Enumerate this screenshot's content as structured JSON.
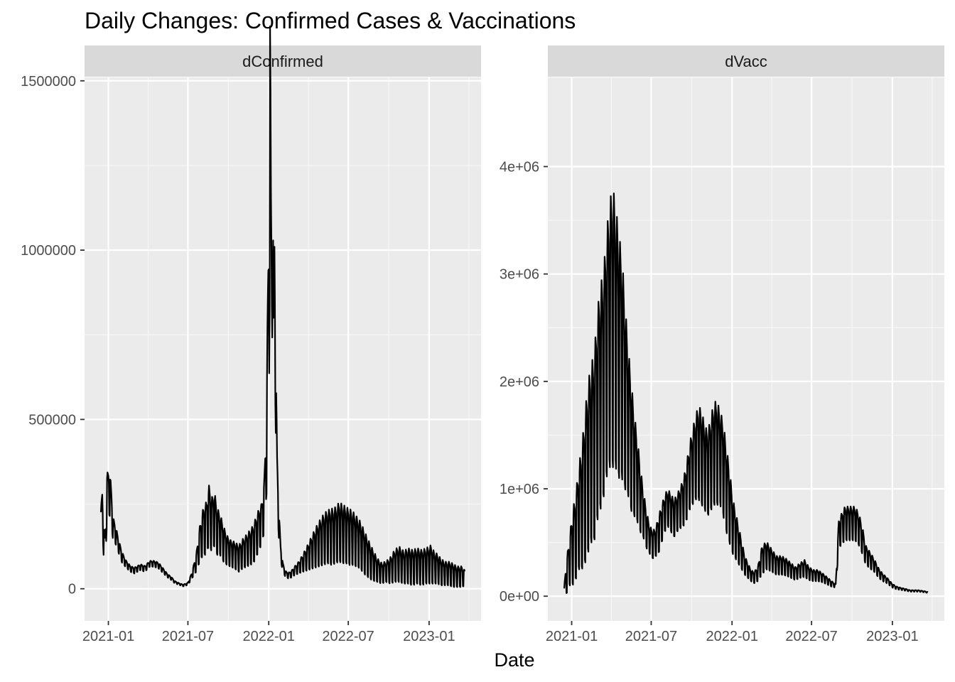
{
  "chart_data": {
    "type": "line",
    "title": "Daily Changes: Confirmed Cases & Vaccinations",
    "xlabel": "Date",
    "ylabel": "",
    "legend": "none",
    "grid": true,
    "panels": [
      {
        "strip": "dConfirmed",
        "x_ticks": [
          "2021-01",
          "2021-07",
          "2022-01",
          "2022-07",
          "2023-01"
        ],
        "y_ticks": [
          0,
          500000,
          1000000,
          1500000
        ],
        "y_tick_labels": [
          "0",
          "500000",
          "1000000",
          "1500000"
        ],
        "ylim": [
          -95000,
          1510000
        ],
        "series": [
          {
            "x": [
              "2020-12-15",
              "2020-12-18",
              "2020-12-21",
              "2020-12-25",
              "2020-12-29",
              "2021-01-04",
              "2021-01-08",
              "2021-01-12",
              "2021-01-18",
              "2021-01-25",
              "2021-02-01",
              "2021-02-10",
              "2021-02-20",
              "2021-03-01",
              "2021-03-15",
              "2021-03-25",
              "2021-04-05",
              "2021-04-15",
              "2021-04-25",
              "2021-05-05",
              "2021-05-15",
              "2021-05-25",
              "2021-06-01",
              "2021-06-10",
              "2021-06-20",
              "2021-07-01",
              "2021-07-10",
              "2021-07-20",
              "2021-07-28",
              "2021-08-05",
              "2021-08-12",
              "2021-08-18",
              "2021-08-24",
              "2021-08-30",
              "2021-09-05",
              "2021-09-12",
              "2021-09-20",
              "2021-09-28",
              "2021-10-06",
              "2021-10-15",
              "2021-10-25",
              "2021-11-03",
              "2021-11-12",
              "2021-11-20",
              "2021-11-27",
              "2021-12-03",
              "2021-12-10",
              "2021-12-16",
              "2021-12-22",
              "2021-12-27",
              "2021-12-30",
              "2022-01-02",
              "2022-01-04",
              "2022-01-06",
              "2022-01-08",
              "2022-01-10",
              "2022-01-12",
              "2022-01-14",
              "2022-01-17",
              "2022-01-20",
              "2022-01-24",
              "2022-01-28",
              "2022-02-02",
              "2022-02-08",
              "2022-02-15",
              "2022-02-22",
              "2022-03-01",
              "2022-03-10",
              "2022-03-20",
              "2022-04-01",
              "2022-04-12",
              "2022-04-24",
              "2022-05-05",
              "2022-05-15",
              "2022-05-24",
              "2022-06-02",
              "2022-06-10",
              "2022-06-18",
              "2022-06-26",
              "2022-07-04",
              "2022-07-12",
              "2022-07-20",
              "2022-07-28",
              "2022-08-05",
              "2022-08-14",
              "2022-08-24",
              "2022-09-05",
              "2022-09-15",
              "2022-09-25",
              "2022-10-05",
              "2022-10-15",
              "2022-10-25",
              "2022-11-04",
              "2022-11-14",
              "2022-11-24",
              "2022-12-05",
              "2022-12-15",
              "2022-12-25",
              "2023-01-05",
              "2023-01-12",
              "2023-01-20",
              "2023-01-28",
              "2023-02-06",
              "2023-02-15",
              "2023-02-24",
              "2023-03-05",
              "2023-03-12",
              "2023-03-18",
              "2023-03-23"
            ],
            "y": [
              205000,
              245000,
              150000,
              120000,
              285000,
              295000,
              240000,
              180000,
              160000,
              125000,
              95000,
              75000,
              60000,
              55000,
              65000,
              60000,
              75000,
              75000,
              70000,
              55000,
              40000,
              30000,
              20000,
              15000,
              10000,
              15000,
              40000,
              80000,
              140000,
              180000,
              190000,
              230000,
              200000,
              220000,
              180000,
              170000,
              140000,
              120000,
              110000,
              105000,
              95000,
              110000,
              120000,
              130000,
              140000,
              160000,
              185000,
              200000,
              260000,
              420000,
              700000,
              950000,
              1430000,
              1000000,
              780000,
              1160000,
              650000,
              900000,
              600000,
              330000,
              200000,
              110000,
              65000,
              45000,
              40000,
              45000,
              55000,
              65000,
              80000,
              100000,
              120000,
              140000,
              155000,
              165000,
              165000,
              170000,
              180000,
              175000,
              170000,
              165000,
              160000,
              150000,
              140000,
              120000,
              100000,
              80000,
              60000,
              50000,
              55000,
              60000,
              75000,
              80000,
              70000,
              75000,
              70000,
              75000,
              70000,
              75000,
              80000,
              70000,
              65000,
              55000,
              50000,
              50000,
              45000,
              40000,
              40000,
              40000,
              35000
            ],
            "swing": [
              38000,
              60000,
              50000,
              55000,
              75000,
              80000,
              60000,
              40000,
              30000,
              22000,
              18000,
              12000,
              10000,
              10000,
              10000,
              10000,
              10000,
              10000,
              10000,
              8000,
              6000,
              5000,
              4000,
              3000,
              3000,
              4000,
              10000,
              30000,
              60000,
              80000,
              90000,
              100000,
              90000,
              95000,
              80000,
              70000,
              60000,
              50000,
              45000,
              45000,
              45000,
              50000,
              55000,
              60000,
              65000,
              70000,
              70000,
              70000,
              90000,
              140000,
              260000,
              330000,
              420000,
              260000,
              230000,
              250000,
              200000,
              200000,
              140000,
              90000,
              50000,
              25000,
              15000,
              10000,
              10000,
              12000,
              15000,
              20000,
              30000,
              45000,
              60000,
              75000,
              85000,
              90000,
              95000,
              95000,
              100000,
              100000,
              95000,
              95000,
              90000,
              85000,
              80000,
              75000,
              65000,
              55000,
              40000,
              35000,
              35000,
              45000,
              55000,
              60000,
              55000,
              60000,
              60000,
              60000,
              60000,
              60000,
              65000,
              55000,
              50000,
              45000,
              40000,
              40000,
              40000,
              35000,
              35000,
              35000,
              25000
            ]
          }
        ]
      },
      {
        "strip": "dVacc",
        "x_ticks": [
          "2021-01",
          "2021-07",
          "2022-01",
          "2022-07",
          "2023-01"
        ],
        "y_ticks": [
          0,
          1000000,
          2000000,
          3000000,
          4000000
        ],
        "y_tick_labels": [
          "0e+00",
          "1e+06",
          "2e+06",
          "3e+06",
          "4e+06"
        ],
        "ylim": [
          -230000,
          4830000
        ],
        "series": [
          {
            "x": [
              "2020-12-15",
              "2020-12-20",
              "2020-12-27",
              "2021-01-03",
              "2021-01-10",
              "2021-01-17",
              "2021-01-24",
              "2021-01-31",
              "2021-02-07",
              "2021-02-14",
              "2021-02-21",
              "2021-02-28",
              "2021-03-07",
              "2021-03-14",
              "2021-03-21",
              "2021-03-28",
              "2021-04-04",
              "2021-04-11",
              "2021-04-18",
              "2021-04-25",
              "2021-05-02",
              "2021-05-09",
              "2021-05-16",
              "2021-05-23",
              "2021-05-30",
              "2021-06-06",
              "2021-06-13",
              "2021-06-20",
              "2021-06-27",
              "2021-07-04",
              "2021-07-11",
              "2021-07-18",
              "2021-07-25",
              "2021-08-01",
              "2021-08-08",
              "2021-08-15",
              "2021-08-22",
              "2021-08-29",
              "2021-09-05",
              "2021-09-12",
              "2021-09-19",
              "2021-09-26",
              "2021-10-03",
              "2021-10-10",
              "2021-10-17",
              "2021-10-24",
              "2021-10-31",
              "2021-11-07",
              "2021-11-14",
              "2021-11-21",
              "2021-11-28",
              "2021-12-05",
              "2021-12-12",
              "2021-12-19",
              "2021-12-26",
              "2022-01-02",
              "2022-01-09",
              "2022-01-16",
              "2022-01-23",
              "2022-01-30",
              "2022-02-06",
              "2022-02-13",
              "2022-02-20",
              "2022-03-01",
              "2022-03-10",
              "2022-03-20",
              "2022-04-01",
              "2022-04-12",
              "2022-04-24",
              "2022-05-05",
              "2022-05-15",
              "2022-05-25",
              "2022-06-05",
              "2022-06-15",
              "2022-06-25",
              "2022-07-05",
              "2022-07-15",
              "2022-07-25",
              "2022-08-05",
              "2022-08-15",
              "2022-08-25",
              "2022-09-01",
              "2022-09-08",
              "2022-09-15",
              "2022-09-22",
              "2022-09-30",
              "2022-10-08",
              "2022-10-16",
              "2022-10-24",
              "2022-11-01",
              "2022-11-10",
              "2022-11-20",
              "2022-12-01",
              "2022-12-10",
              "2022-12-20",
              "2023-01-01",
              "2023-01-10",
              "2023-01-20",
              "2023-02-01",
              "2023-02-10",
              "2023-02-20",
              "2023-03-01",
              "2023-03-10",
              "2023-03-18",
              "2023-03-23"
            ],
            "y": [
              50000,
              200000,
              350000,
              500000,
              600000,
              800000,
              900000,
              1100000,
              1300000,
              1450000,
              1500000,
              1800000,
              2000000,
              2100000,
              2400000,
              2600000,
              2700000,
              2600000,
              2400000,
              2300000,
              2000000,
              1750000,
              1500000,
              1300000,
              1150000,
              950000,
              800000,
              650000,
              550000,
              500000,
              520000,
              600000,
              700000,
              800000,
              850000,
              800000,
              750000,
              800000,
              850000,
              900000,
              1000000,
              1150000,
              1250000,
              1350000,
              1400000,
              1350000,
              1250000,
              1200000,
              1300000,
              1400000,
              1400000,
              1350000,
              1250000,
              1050000,
              900000,
              700000,
              600000,
              500000,
              400000,
              300000,
              250000,
              200000,
              180000,
              220000,
              350000,
              400000,
              350000,
              300000,
              300000,
              280000,
              250000,
              220000,
              250000,
              270000,
              220000,
              200000,
              200000,
              180000,
              150000,
              120000,
              100000,
              600000,
              650000,
              700000,
              700000,
              700000,
              700000,
              650000,
              550000,
              400000,
              350000,
              300000,
              220000,
              180000,
              150000,
              100000,
              80000,
              70000,
              60000,
              50000,
              50000,
              50000,
              45000,
              40000,
              35000
            ],
            "swing": [
              40000,
              180000,
              250000,
              400000,
              450000,
              550000,
              650000,
              800000,
              900000,
              950000,
              1000000,
              1100000,
              1200000,
              1200000,
              1300000,
              1400000,
              1500000,
              1400000,
              1300000,
              1200000,
              1000000,
              800000,
              700000,
              550000,
              450000,
              350000,
              250000,
              200000,
              150000,
              150000,
              150000,
              200000,
              200000,
              200000,
              200000,
              200000,
              200000,
              200000,
              220000,
              250000,
              300000,
              350000,
              400000,
              450000,
              500000,
              500000,
              450000,
              450000,
              500000,
              550000,
              550000,
              500000,
              500000,
              450000,
              400000,
              300000,
              250000,
              200000,
              150000,
              100000,
              80000,
              60000,
              60000,
              80000,
              150000,
              150000,
              120000,
              100000,
              100000,
              90000,
              80000,
              70000,
              80000,
              90000,
              70000,
              60000,
              60000,
              50000,
              40000,
              30000,
              20000,
              150000,
              170000,
              180000,
              180000,
              180000,
              180000,
              170000,
              150000,
              100000,
              90000,
              70000,
              50000,
              40000,
              30000,
              20000,
              15000,
              12000,
              10000,
              8000,
              8000,
              8000,
              7000,
              6000,
              5000
            ]
          }
        ]
      }
    ]
  }
}
